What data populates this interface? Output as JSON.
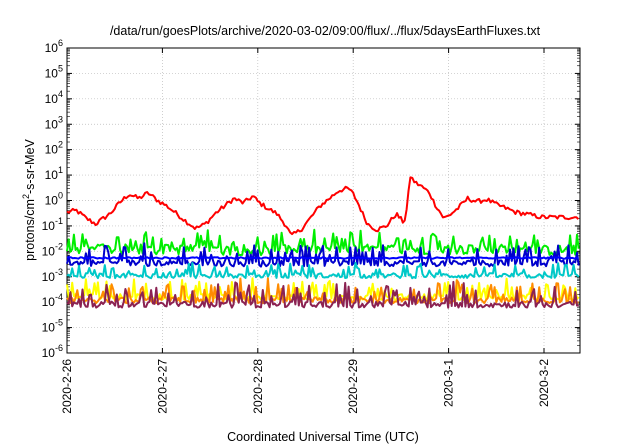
{
  "chart_data": {
    "type": "line",
    "title": "/data/run/goesPlots/archive/2020-03-02/09:00/flux/../flux/5daysEarthFluxes.txt",
    "xlabel": "Coordinated Universal Time (UTC)",
    "ylabel": {
      "prefix": "protons/cm",
      "sup": "2",
      "suffix": "-s-sr-MeV"
    },
    "yscale": "log",
    "ylim_exp": [
      -6,
      6
    ],
    "ytick_labels": [
      {
        "base": "10",
        "exp": "-6"
      },
      {
        "base": "10",
        "exp": "-5"
      },
      {
        "base": "10",
        "exp": "-4"
      },
      {
        "base": "10",
        "exp": "-3"
      },
      {
        "base": "10",
        "exp": "-2"
      },
      {
        "base": "10",
        "exp": "-1"
      },
      {
        "base": "10",
        "exp": "0"
      },
      {
        "base": "10",
        "exp": "1"
      },
      {
        "base": "10",
        "exp": "2"
      },
      {
        "base": "10",
        "exp": "3"
      },
      {
        "base": "10",
        "exp": "4"
      },
      {
        "base": "10",
        "exp": "5"
      },
      {
        "base": "10",
        "exp": "6"
      }
    ],
    "xlim": [
      "2020-02-26",
      "2020-03-02 10:00"
    ],
    "xtick_labels": [
      "2020-2-26",
      "2020-2-27",
      "2020-2-28",
      "2020-2-29",
      "2020-3-1",
      "2020-3-2"
    ],
    "grid": true,
    "series": [
      {
        "color": "#ff0000",
        "base": [
          [
            0.0,
            0.35
          ],
          [
            0.1,
            0.4
          ],
          [
            0.2,
            0.2
          ],
          [
            0.3,
            0.12
          ],
          [
            0.45,
            0.3
          ],
          [
            0.55,
            0.8
          ],
          [
            0.65,
            1.8
          ],
          [
            0.75,
            1.2
          ],
          [
            0.85,
            2.0
          ],
          [
            0.95,
            1.0
          ],
          [
            1.05,
            0.6
          ],
          [
            1.15,
            0.3
          ],
          [
            1.25,
            0.15
          ],
          [
            1.35,
            0.08
          ],
          [
            1.45,
            0.12
          ],
          [
            1.55,
            0.3
          ],
          [
            1.65,
            0.6
          ],
          [
            1.75,
            1.2
          ],
          [
            1.85,
            0.8
          ],
          [
            1.95,
            1.5
          ],
          [
            2.0,
            0.9
          ],
          [
            2.1,
            0.5
          ],
          [
            2.2,
            0.3
          ],
          [
            2.3,
            0.1
          ],
          [
            2.35,
            0.04
          ],
          [
            2.45,
            0.07
          ],
          [
            2.55,
            0.2
          ],
          [
            2.65,
            0.6
          ],
          [
            2.75,
            1.2
          ],
          [
            2.85,
            2.5
          ],
          [
            2.95,
            3.0
          ],
          [
            3.0,
            1.8
          ],
          [
            3.05,
            0.8
          ],
          [
            3.1,
            0.3
          ],
          [
            3.15,
            0.12
          ],
          [
            3.25,
            0.07
          ],
          [
            3.35,
            0.1
          ],
          [
            3.45,
            0.3
          ],
          [
            3.52,
            0.15
          ],
          [
            3.55,
            0.2
          ],
          [
            3.6,
            9.0
          ],
          [
            3.65,
            5.0
          ],
          [
            3.7,
            4.0
          ],
          [
            3.8,
            2.0
          ],
          [
            3.85,
            0.8
          ],
          [
            3.9,
            0.4
          ],
          [
            3.95,
            0.2
          ],
          [
            4.0,
            0.25
          ],
          [
            4.1,
            0.5
          ],
          [
            4.2,
            1.2
          ],
          [
            4.3,
            0.9
          ],
          [
            4.4,
            1.1
          ],
          [
            4.5,
            0.7
          ],
          [
            4.6,
            0.5
          ],
          [
            4.7,
            0.35
          ],
          [
            4.8,
            0.3
          ],
          [
            4.9,
            0.25
          ],
          [
            4.98,
            0.22
          ]
        ],
        "noise": 0.09,
        "spike": 0
      },
      {
        "color": "#00ee00",
        "base": [
          [
            0,
            0.012
          ],
          [
            1,
            0.012
          ],
          [
            2,
            0.011
          ],
          [
            3,
            0.012
          ],
          [
            4,
            0.012
          ],
          [
            4.98,
            0.011
          ]
        ],
        "noise": 0.2,
        "spike": 0.42
      },
      {
        "color": "#0000cc",
        "base": [
          [
            0,
            0.0035
          ],
          [
            1,
            0.0035
          ],
          [
            2,
            0.0033
          ],
          [
            3,
            0.0035
          ],
          [
            4,
            0.0034
          ],
          [
            4.98,
            0.0034
          ]
        ],
        "noise": 0.12,
        "spike": 0.48
      },
      {
        "color": "#0000ff",
        "base": [
          [
            0,
            0.0055
          ],
          [
            1,
            0.0055
          ],
          [
            2,
            0.0055
          ],
          [
            3,
            0.0055
          ],
          [
            4,
            0.0055
          ],
          [
            4.98,
            0.0055
          ]
        ],
        "noise": 0.03,
        "spike": 0
      },
      {
        "color": "#00c8c8",
        "base": [
          [
            0,
            0.0011
          ],
          [
            1,
            0.0011
          ],
          [
            2,
            0.0011
          ],
          [
            3,
            0.0011
          ],
          [
            4,
            0.0011
          ],
          [
            4.98,
            0.0011
          ]
        ],
        "noise": 0.1,
        "spike": 0.3
      },
      {
        "color": "#ffff00",
        "base": [
          [
            0,
            0.00016
          ],
          [
            1,
            0.00016
          ],
          [
            2,
            0.00016
          ],
          [
            3,
            0.00016
          ],
          [
            4,
            0.00016
          ],
          [
            4.98,
            0.00016
          ]
        ],
        "noise": 0.12,
        "spike": 0.45
      },
      {
        "color": "#ff8c00",
        "base": [
          [
            0,
            0.00012
          ],
          [
            1,
            0.00012
          ],
          [
            2,
            0.00012
          ],
          [
            3,
            0.00012
          ],
          [
            4,
            0.00012
          ],
          [
            4.98,
            0.00012
          ]
        ],
        "noise": 0.12,
        "spike": 0.5
      },
      {
        "color": "#8b2252",
        "base": [
          [
            0,
            8e-05
          ],
          [
            1,
            8e-05
          ],
          [
            2,
            8e-05
          ],
          [
            3,
            8e-05
          ],
          [
            4,
            8e-05
          ],
          [
            4.98,
            8e-05
          ]
        ],
        "noise": 0.12,
        "spike": 0.55
      }
    ]
  }
}
